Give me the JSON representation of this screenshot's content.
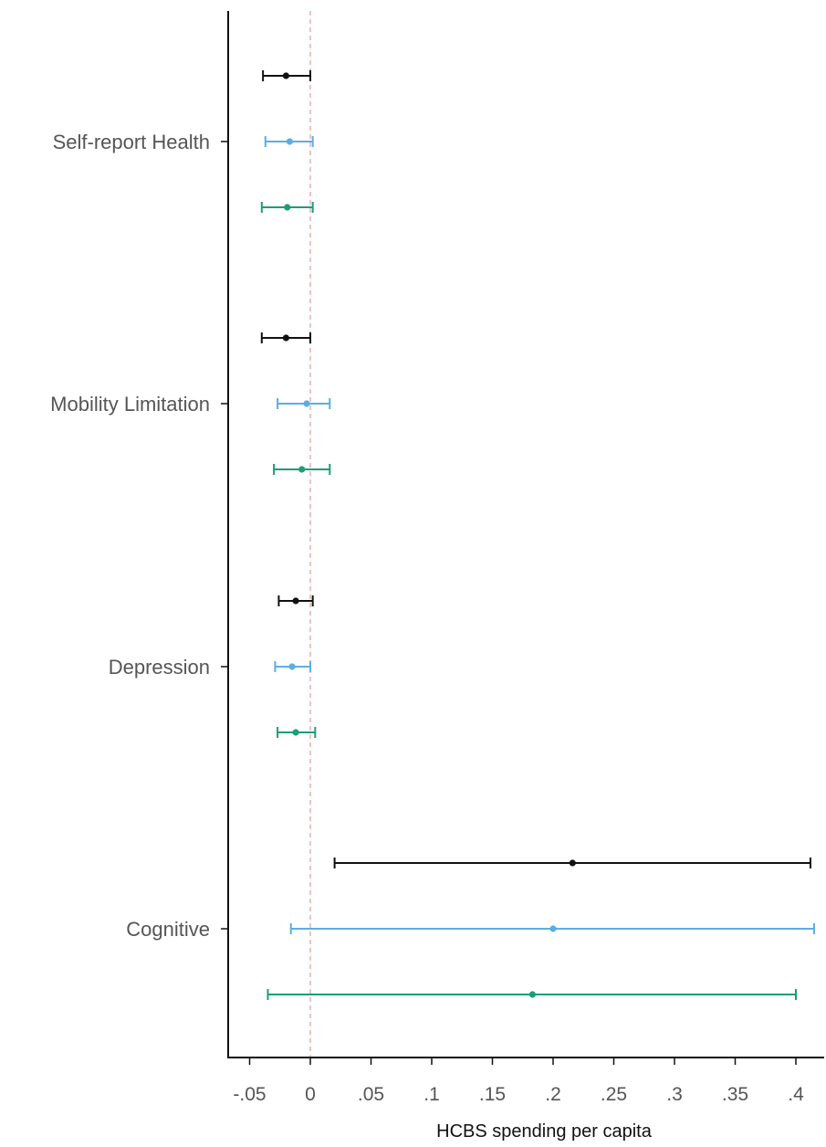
{
  "chart_data": {
    "type": "scatter",
    "subtype": "coefficient-plot-with-confidence-intervals",
    "title": "",
    "xlabel": "HCBS spending per capita",
    "ylabel": "",
    "xlim": [
      -0.067,
      0.425
    ],
    "x_ticks": [
      {
        "value": -0.05,
        "label": "-.05"
      },
      {
        "value": 0,
        "label": "0"
      },
      {
        "value": 0.05,
        "label": ".05"
      },
      {
        "value": 0.1,
        "label": ".1"
      },
      {
        "value": 0.15,
        "label": ".15"
      },
      {
        "value": 0.2,
        "label": ".2"
      },
      {
        "value": 0.25,
        "label": ".25"
      },
      {
        "value": 0.3,
        "label": ".3"
      },
      {
        "value": 0.35,
        "label": ".35"
      },
      {
        "value": 0.4,
        "label": ".4"
      }
    ],
    "reference_line": {
      "x": 0,
      "style": "dashed",
      "color": "#e8a0a8"
    },
    "grid": false,
    "legend": "none",
    "categories": [
      "Self-report Health",
      "Mobility Limitation",
      "Depression",
      "Cognitive"
    ],
    "series": [
      {
        "color": "#111111",
        "estimates": [
          -0.02,
          -0.02,
          -0.012,
          0.216
        ],
        "ci_low": [
          -0.039,
          -0.04,
          -0.026,
          0.02
        ],
        "ci_high": [
          0,
          0,
          0.002,
          0.412
        ]
      },
      {
        "color": "#5aaee5",
        "estimates": [
          -0.017,
          -0.003,
          -0.015,
          0.2
        ],
        "ci_low": [
          -0.037,
          -0.027,
          -0.029,
          -0.016
        ],
        "ci_high": [
          0.002,
          0.016,
          0,
          0.415
        ]
      },
      {
        "color": "#1b9e77",
        "estimates": [
          -0.019,
          -0.007,
          -0.012,
          0.183
        ],
        "ci_low": [
          -0.04,
          -0.03,
          -0.027,
          -0.035
        ],
        "ci_high": [
          0.002,
          0.016,
          0.004,
          0.4
        ]
      }
    ],
    "colors": {
      "axis": "#111111",
      "tick_label": "#555555"
    }
  }
}
